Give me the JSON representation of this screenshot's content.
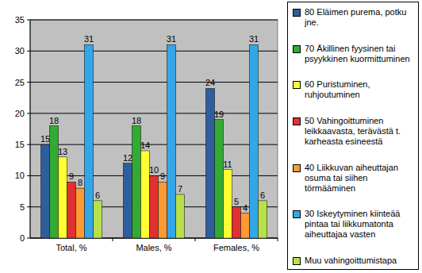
{
  "chart_data": {
    "type": "bar",
    "categories": [
      "Total, %",
      "Males, %",
      "Females, %"
    ],
    "series": [
      {
        "name": "80 Eläimen purema, potku jne.",
        "color": "#2E5E9E",
        "values": [
          15,
          12,
          24
        ]
      },
      {
        "name": "70 Äkillinen fyysinen tai psyykkinen kuormittuminen",
        "color": "#33AA33",
        "values": [
          18,
          18,
          19
        ]
      },
      {
        "name": "60 Puristuminen, ruhjoutuminen",
        "color": "#FFFF33",
        "values": [
          13,
          14,
          11
        ]
      },
      {
        "name": "50 Vahingoittuminen leikkaavasta, terävästä t. karheasta esineestä",
        "color": "#E03030",
        "values": [
          9,
          10,
          5
        ]
      },
      {
        "name": "40 Liikkuvan aiheuttajan osuma tai siihen törmääminen",
        "color": "#FF9933",
        "values": [
          8,
          9,
          4
        ]
      },
      {
        "name": "30 Iskeytyminen kiinteää pintaa tai liikkumatonta aiheuttajaa vasten",
        "color": "#33A6E8",
        "values": [
          31,
          31,
          31
        ]
      },
      {
        "name": "Muu vahingoittumistapa",
        "color": "#B8E04A",
        "values": [
          6,
          7,
          6
        ]
      }
    ],
    "ylim": [
      0,
      35
    ],
    "yticks": [
      0,
      5,
      10,
      15,
      20,
      25,
      30,
      35
    ],
    "grid": true,
    "data_labels": true,
    "legend": "right"
  }
}
